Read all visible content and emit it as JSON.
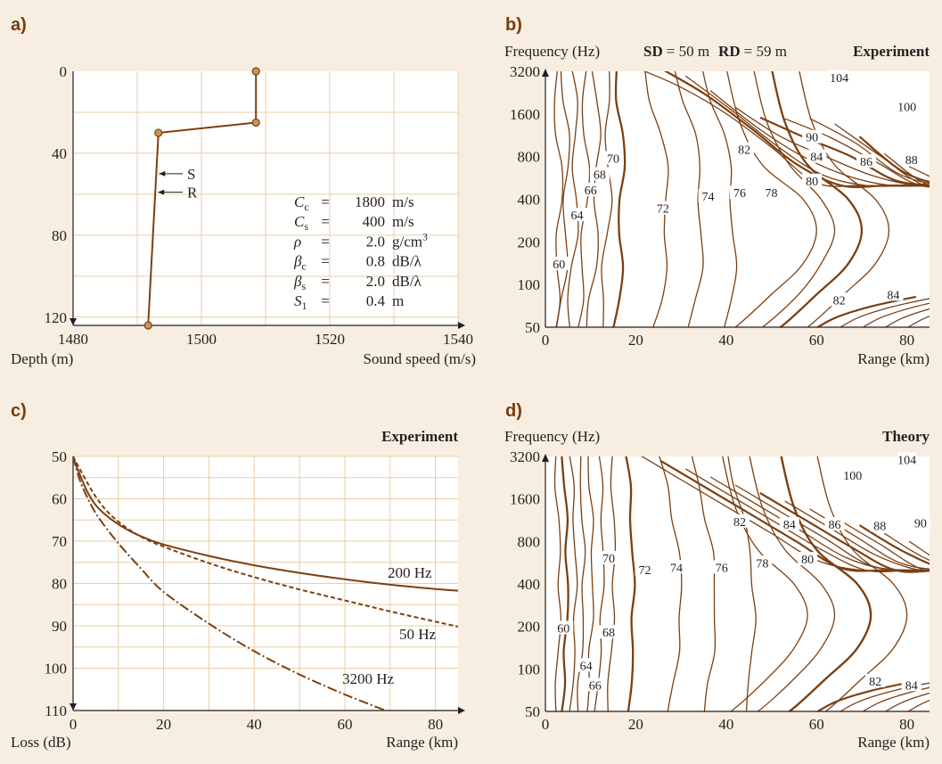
{
  "colors": {
    "background": "#f8ede1",
    "plot_bg": "#ffffff",
    "grid": "#e9cfa7",
    "curve": "#7b4012",
    "panel_letter": "#7a3a0a",
    "node_fill": "#c9935a"
  },
  "panels": {
    "a": {
      "letter": "a)",
      "xlabel_left": "Depth (m)",
      "xlabel_right": "Sound speed (m/s)",
      "xticks": [
        "1480",
        "1500",
        "1520",
        "1540"
      ],
      "yticks": [
        "0",
        "40",
        "80",
        "120"
      ],
      "sr_labels": [
        "S",
        "R"
      ]
    },
    "b": {
      "letter": "b)",
      "ylabel": "Frequency (Hz)",
      "header_sd_key": "SD",
      "header_sd_val": "= 50 m",
      "header_rd_key": "RD",
      "header_rd_val": "= 59 m",
      "tag": "Experiment",
      "yticks": [
        "3200",
        "1600",
        "800",
        "400",
        "200",
        "100",
        "50"
      ],
      "xticks": [
        "0",
        "20",
        "40",
        "60",
        "80"
      ],
      "xlabel": "Range (km)"
    },
    "c": {
      "letter": "c)",
      "tag": "Experiment",
      "ylabel": "Loss (dB)",
      "xlabel": "Range (km)",
      "yticks": [
        "50",
        "60",
        "70",
        "80",
        "90",
        "100",
        "110"
      ],
      "xticks": [
        "0",
        "20",
        "40",
        "60",
        "80"
      ]
    },
    "d": {
      "letter": "d)",
      "ylabel": "Frequency (Hz)",
      "tag": "Theory",
      "yticks": [
        "3200",
        "1600",
        "800",
        "400",
        "200",
        "100",
        "50"
      ],
      "xticks": [
        "0",
        "20",
        "40",
        "60",
        "80"
      ],
      "xlabel": "Range (km)"
    }
  },
  "params": [
    {
      "sym": "C",
      "sub": "c",
      "eq": "=",
      "val": "1800",
      "unit": "m/s",
      "sup": ""
    },
    {
      "sym": "C",
      "sub": "s",
      "eq": "=",
      "val": "400",
      "unit": "m/s",
      "sup": ""
    },
    {
      "sym": "ρ",
      "sub": "",
      "eq": "=",
      "val": "2.0",
      "unit": "g/cm",
      "sup": "3"
    },
    {
      "sym": "β",
      "sub": "c",
      "eq": "=",
      "val": "0.8",
      "unit": "dB/λ",
      "sup": ""
    },
    {
      "sym": "β",
      "sub": "s",
      "eq": "=",
      "val": "2.0",
      "unit": "dB/λ",
      "sup": ""
    },
    {
      "sym": "S",
      "sub": "1",
      "eq": "=",
      "val": "0.4",
      "unit": "m",
      "sup": ""
    }
  ],
  "chart_data": [
    {
      "type": "line",
      "title": "",
      "xlabel": "Sound speed (m/s)",
      "ylabel": "Depth (m)",
      "xlim": [
        1480,
        1540
      ],
      "ylim": [
        124,
        0
      ],
      "grid": true,
      "series": [
        {
          "name": "",
          "x": [
            1508.5,
            1508.5,
            1493.3,
            1491.7
          ],
          "y": [
            0,
            25,
            30,
            124
          ]
        }
      ],
      "annotations": [
        {
          "text": "S",
          "depth": 50
        },
        {
          "text": "R",
          "depth": 59
        }
      ]
    },
    {
      "type": "heatmap",
      "title": "Experiment",
      "xlabel": "Range (km)",
      "ylabel": "Frequency (Hz)",
      "xlim": [
        0,
        85
      ],
      "ylim": [
        50,
        3200
      ],
      "yscale": "log2",
      "contour_labels": [
        {
          "v": "104",
          "x": 65,
          "f": 2900
        },
        {
          "v": "100",
          "x": 80,
          "f": 1800
        },
        {
          "v": "90",
          "x": 59,
          "f": 1100
        },
        {
          "v": "82",
          "x": 44,
          "f": 900
        },
        {
          "v": "84",
          "x": 60,
          "f": 800
        },
        {
          "v": "86",
          "x": 71,
          "f": 740
        },
        {
          "v": "88",
          "x": 81,
          "f": 760
        },
        {
          "v": "80",
          "x": 59,
          "f": 540
        },
        {
          "v": "70",
          "x": 15,
          "f": 780
        },
        {
          "v": "68",
          "x": 12,
          "f": 600
        },
        {
          "v": "66",
          "x": 10,
          "f": 465
        },
        {
          "v": "64",
          "x": 7,
          "f": 310
        },
        {
          "v": "60",
          "x": 3,
          "f": 140
        },
        {
          "v": "72",
          "x": 26,
          "f": 345
        },
        {
          "v": "74",
          "x": 36,
          "f": 420
        },
        {
          "v": "76",
          "x": 43,
          "f": 445
        },
        {
          "v": "78",
          "x": 50,
          "f": 445
        },
        {
          "v": "82",
          "x": 65,
          "f": 78
        },
        {
          "v": "84",
          "x": 77,
          "f": 85
        }
      ]
    },
    {
      "type": "line",
      "title": "Experiment",
      "xlabel": "Range (km)",
      "ylabel": "Loss (dB)",
      "xlim": [
        0,
        85
      ],
      "ylim": [
        110,
        50
      ],
      "grid": true,
      "series": [
        {
          "name": "200 Hz",
          "style": "solid",
          "x": [
            0,
            1,
            3,
            5,
            8,
            12,
            16,
            20,
            30,
            40,
            50,
            60,
            70,
            80,
            85
          ],
          "y": [
            50,
            53,
            58,
            61.5,
            64.5,
            67.3,
            69.3,
            70.8,
            73.5,
            75.7,
            77.5,
            79,
            80.3,
            81.3,
            81.7
          ]
        },
        {
          "name": "50 Hz",
          "style": "dashed",
          "x": [
            0,
            2,
            5,
            8,
            12,
            16,
            20,
            30,
            40,
            50,
            60,
            70,
            80,
            85
          ],
          "y": [
            50,
            54,
            59.5,
            63.5,
            67,
            69.5,
            71.3,
            75.2,
            78.5,
            81.4,
            84,
            86.6,
            89,
            90.2
          ]
        },
        {
          "name": "3200 Hz",
          "style": "dashdot",
          "x": [
            0,
            1,
            2,
            4,
            6,
            10,
            15,
            20,
            30,
            40,
            50,
            60,
            69
          ],
          "y": [
            50,
            54,
            57,
            61.5,
            65,
            70.5,
            76.5,
            82,
            89.5,
            96,
            101.5,
            106.2,
            110
          ]
        }
      ]
    },
    {
      "type": "heatmap",
      "title": "Theory",
      "xlabel": "Range (km)",
      "ylabel": "Frequency (Hz)",
      "xlim": [
        0,
        85
      ],
      "ylim": [
        50,
        3200
      ],
      "yscale": "log2",
      "contour_labels": [
        {
          "v": "104",
          "x": 80,
          "f": 3050
        },
        {
          "v": "100",
          "x": 68,
          "f": 2350
        },
        {
          "v": "90",
          "x": 83,
          "f": 1080
        },
        {
          "v": "82",
          "x": 43,
          "f": 1110
        },
        {
          "v": "84",
          "x": 54,
          "f": 1060
        },
        {
          "v": "86",
          "x": 64,
          "f": 1060
        },
        {
          "v": "88",
          "x": 74,
          "f": 1040
        },
        {
          "v": "80",
          "x": 58,
          "f": 600
        },
        {
          "v": "78",
          "x": 48,
          "f": 565
        },
        {
          "v": "76",
          "x": 39,
          "f": 525
        },
        {
          "v": "74",
          "x": 29,
          "f": 525
        },
        {
          "v": "72",
          "x": 22,
          "f": 505
        },
        {
          "v": "70",
          "x": 14,
          "f": 610
        },
        {
          "v": "68",
          "x": 14,
          "f": 182
        },
        {
          "v": "66",
          "x": 11,
          "f": 77
        },
        {
          "v": "64",
          "x": 9,
          "f": 106
        },
        {
          "v": "60",
          "x": 4,
          "f": 195
        },
        {
          "v": "82",
          "x": 73,
          "f": 82
        },
        {
          "v": "84",
          "x": 81,
          "f": 77
        }
      ]
    }
  ]
}
